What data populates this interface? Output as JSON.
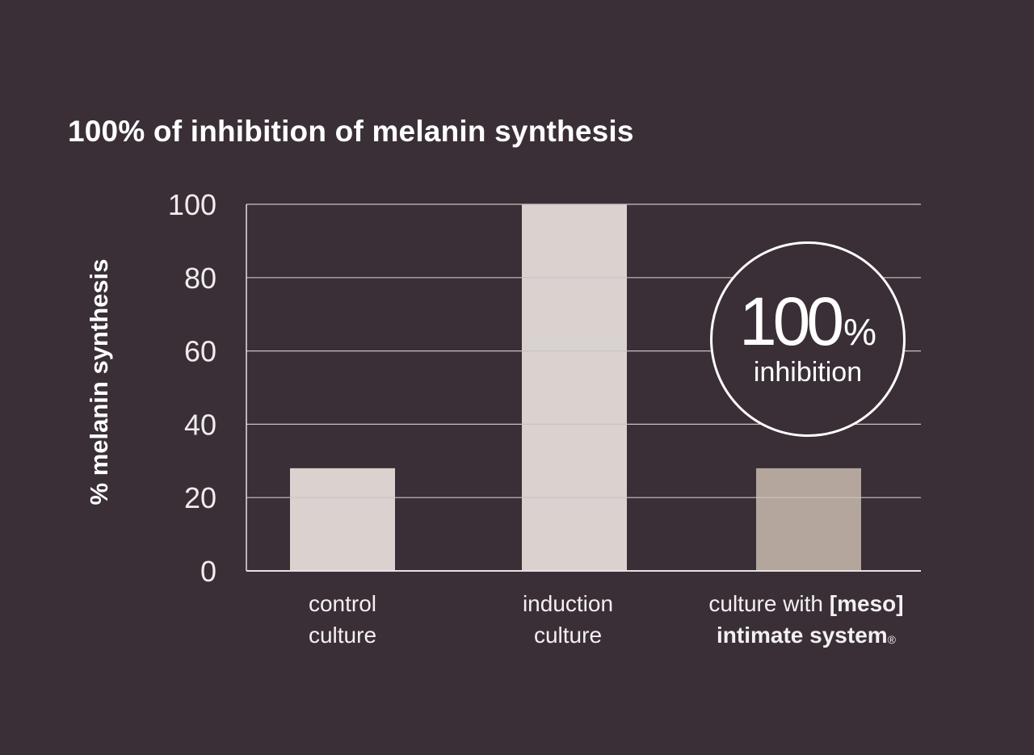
{
  "chart_data": {
    "type": "bar",
    "title": "100% of inhibition of melanin synthesis",
    "ylabel": "% melanin synthesis",
    "xlabel": "",
    "ylim": [
      0,
      100
    ],
    "yticks": [
      "0",
      "20",
      "40",
      "60",
      "80",
      "100"
    ],
    "grid": true,
    "categories": [
      {
        "line1": "control",
        "line2": "culture",
        "line1_strong": "",
        "line2_strong": "",
        "sup": ""
      },
      {
        "line1": "induction",
        "line2": "culture",
        "line1_strong": "",
        "line2_strong": "",
        "sup": ""
      },
      {
        "line1": "culture with ",
        "line1_strong": "[meso]",
        "line2": "",
        "line2_strong": "intimate system",
        "sup": "®"
      }
    ],
    "values": [
      28,
      100,
      28
    ],
    "bar_colors": [
      "#d9d2cf",
      "#d9d2cf",
      "#b4a69c"
    ],
    "badge": {
      "value": "100",
      "unit": "%",
      "caption": "inhibition"
    }
  },
  "colors": {
    "background": "#3a2f36",
    "gridline": "#c9c2c5",
    "text": "#ffffff"
  }
}
